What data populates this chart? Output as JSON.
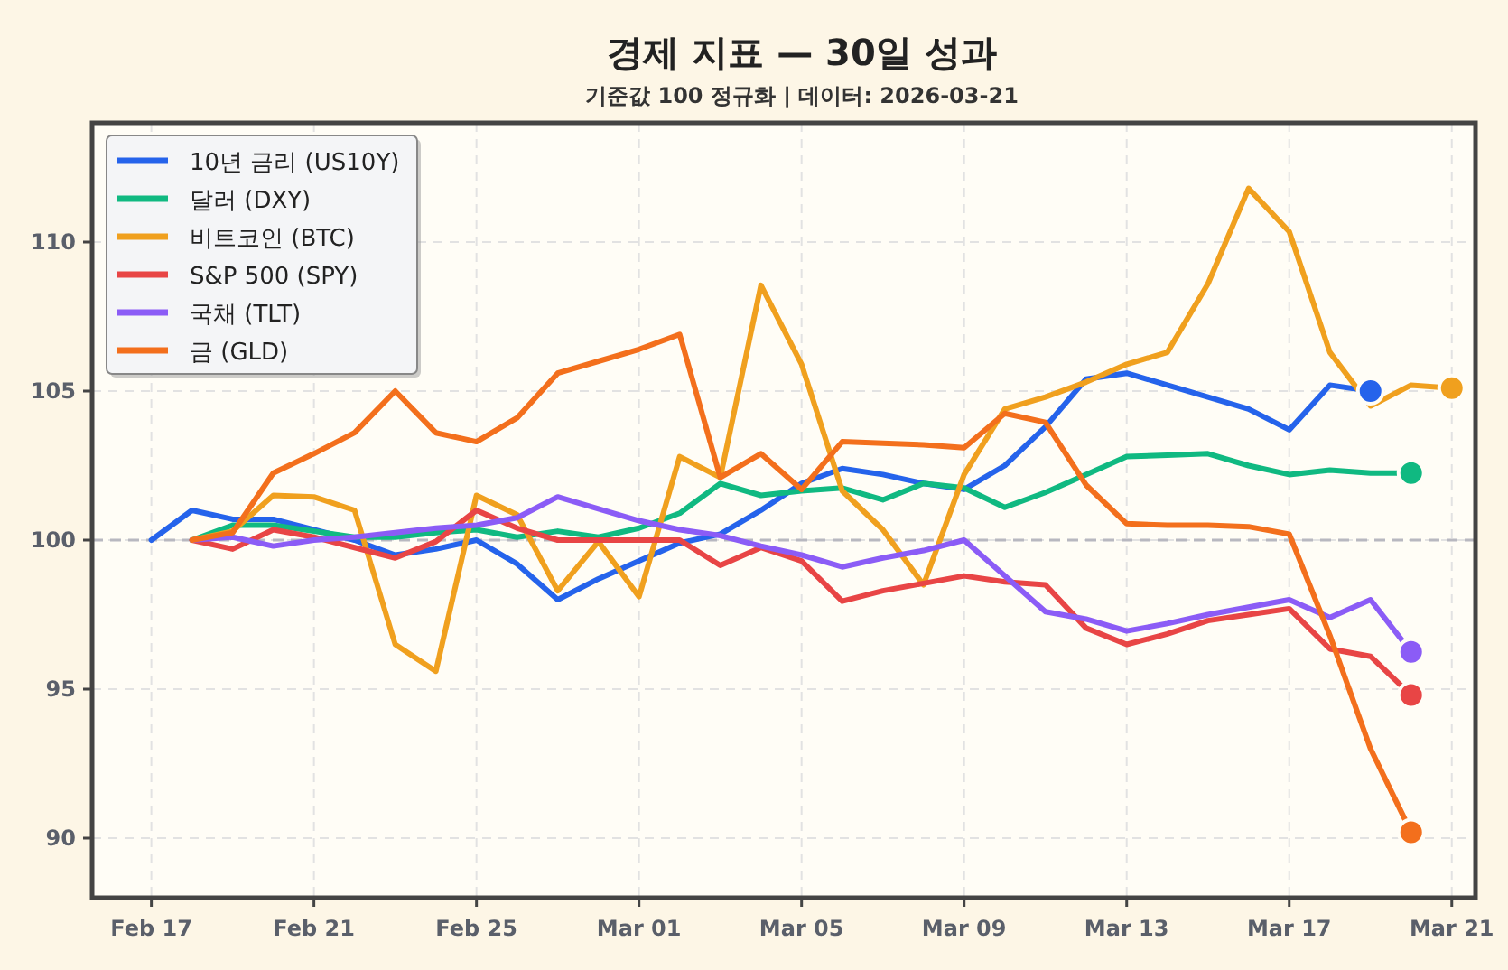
{
  "chart_data": {
    "type": "line",
    "title": "경제 지표 — 30일 성과",
    "subtitle": "기준값 100 정규화 | 데이터: 2026-03-21",
    "x": [
      "2026-02-17",
      "2026-02-18",
      "2026-02-19",
      "2026-02-20",
      "2026-02-21",
      "2026-02-22",
      "2026-02-23",
      "2026-02-24",
      "2026-02-25",
      "2026-02-26",
      "2026-02-27",
      "2026-02-28",
      "2026-03-01",
      "2026-03-02",
      "2026-03-03",
      "2026-03-04",
      "2026-03-05",
      "2026-03-06",
      "2026-03-07",
      "2026-03-08",
      "2026-03-09",
      "2026-03-10",
      "2026-03-11",
      "2026-03-12",
      "2026-03-13",
      "2026-03-14",
      "2026-03-15",
      "2026-03-16",
      "2026-03-17",
      "2026-03-18",
      "2026-03-19",
      "2026-03-20",
      "2026-03-21"
    ],
    "series": [
      {
        "name": "10년 금리 (US10Y)",
        "color": "#2563eb",
        "values": [
          100,
          101.0,
          100.7,
          100.7,
          100.35,
          100,
          99.5,
          99.7,
          100.0,
          99.2,
          98.0,
          98.7,
          99.3,
          99.9,
          100.2,
          101.0,
          101.9,
          102.4,
          102.2,
          101.9,
          101.7,
          102.5,
          103.8,
          105.4,
          105.6,
          105.2,
          104.8,
          104.4,
          103.7,
          105.2,
          105.0,
          null,
          null
        ]
      },
      {
        "name": "달러 (DXY)",
        "color": "#10b981",
        "values": [
          null,
          100,
          100.5,
          100.5,
          100.3,
          100.1,
          100.1,
          100.25,
          100.35,
          100.1,
          100.3,
          100.1,
          100.4,
          100.9,
          101.9,
          101.5,
          101.65,
          101.75,
          101.35,
          101.9,
          101.75,
          101.1,
          101.6,
          102.2,
          102.8,
          102.85,
          102.9,
          102.5,
          102.2,
          102.35,
          102.25,
          102.25,
          null
        ]
      },
      {
        "name": "비트코인 (BTC)",
        "color": "#f0a01e",
        "values": [
          null,
          100,
          100.3,
          101.5,
          101.45,
          101.0,
          96.5,
          95.6,
          101.5,
          100.85,
          98.3,
          99.95,
          98.1,
          102.8,
          102.1,
          108.55,
          105.9,
          101.65,
          100.35,
          98.5,
          102.2,
          104.4,
          104.8,
          105.3,
          105.9,
          106.3,
          108.6,
          111.8,
          110.35,
          106.3,
          104.5,
          105.2,
          105.1
        ]
      },
      {
        "name": "S&P 500 (SPY)",
        "color": "#e84545",
        "values": [
          null,
          100,
          99.7,
          100.35,
          100.1,
          99.75,
          99.4,
          99.95,
          101.0,
          100.4,
          100,
          100,
          100,
          100,
          99.15,
          99.75,
          99.3,
          97.95,
          98.3,
          98.55,
          98.8,
          98.6,
          98.5,
          97.05,
          96.5,
          96.85,
          97.3,
          97.5,
          97.7,
          96.35,
          96.1,
          94.8,
          null
        ]
      },
      {
        "name": "국채 (TLT)",
        "color": "#8b5cf6",
        "values": [
          null,
          100,
          100.1,
          99.8,
          100,
          100.1,
          100.25,
          100.4,
          100.5,
          100.75,
          101.45,
          101.05,
          100.65,
          100.35,
          100.15,
          99.8,
          99.5,
          99.1,
          99.4,
          99.65,
          100.0,
          98.8,
          97.6,
          97.35,
          96.95,
          97.2,
          97.5,
          97.75,
          98.0,
          97.4,
          98.0,
          96.25,
          null
        ]
      },
      {
        "name": "금 (GLD)",
        "color": "#f36f1c",
        "values": [
          null,
          100,
          100.25,
          102.25,
          102.9,
          103.6,
          105.0,
          103.6,
          103.3,
          104.1,
          105.6,
          106.0,
          106.4,
          106.9,
          102.1,
          102.9,
          101.7,
          103.3,
          103.25,
          103.2,
          103.1,
          104.25,
          103.95,
          101.85,
          100.55,
          100.5,
          100.5,
          100.45,
          100.2,
          96.8,
          93.0,
          90.2,
          null
        ]
      },
      {
        "type": "scatter",
        "x": [
          "2026-03-19",
          "2026-03-20",
          "2026-03-21",
          "2026-03-20",
          "2026-03-20",
          "2026-03-20"
        ],
        "values": [
          105.0,
          102.25,
          105.1,
          94.8,
          96.25,
          90.2
        ],
        "colors": [
          "#2563eb",
          "#10b981",
          "#f0a01e",
          "#e84545",
          "#8b5cf6",
          "#f36f1c"
        ]
      }
    ],
    "xlim": [
      "2026-02-15T13:00",
      "2026-03-21T14:00"
    ],
    "ylim": [
      88,
      114
    ],
    "xticks": [
      {
        "value": "2026-02-17",
        "label": "Feb 17"
      },
      {
        "value": "2026-02-21",
        "label": "Feb 21"
      },
      {
        "value": "2026-02-25",
        "label": "Feb 25"
      },
      {
        "value": "2026-03-01",
        "label": "Mar 01"
      },
      {
        "value": "2026-03-05",
        "label": "Mar 05"
      },
      {
        "value": "2026-03-09",
        "label": "Mar 09"
      },
      {
        "value": "2026-03-13",
        "label": "Mar 13"
      },
      {
        "value": "2026-03-17",
        "label": "Mar 17"
      },
      {
        "value": "2026-03-21",
        "label": "Mar 21"
      }
    ],
    "yticks": [
      90,
      95,
      100,
      105,
      110
    ],
    "ref_lines": [
      {
        "axis": "y",
        "value": 100,
        "color": "#b8b8c0",
        "line_style": "dashed"
      }
    ],
    "grid": true,
    "legend": "top left",
    "line_style": "solid"
  }
}
